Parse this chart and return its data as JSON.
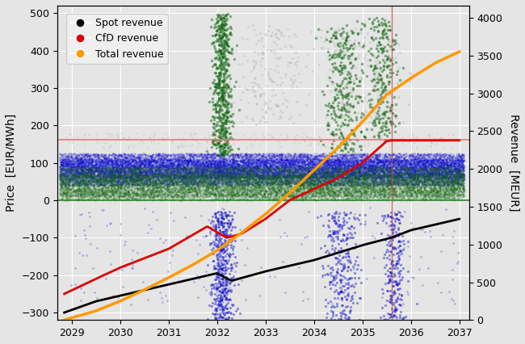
{
  "ylabel_left": "Price  [EUR/MWh]",
  "ylabel_right": "Revenue  [MEUR]",
  "xlim": [
    2028.7,
    2037.2
  ],
  "ylim_left": [
    -320,
    520
  ],
  "ylim_right": [
    0,
    4160
  ],
  "x_ticks": [
    2029,
    2030,
    2031,
    2032,
    2033,
    2034,
    2035,
    2036,
    2037
  ],
  "background_color": "#e5e5e5",
  "grid_color": "#ffffff",
  "hline_pink_y": 162,
  "hline_pink_color": "#e87878",
  "hline_green_y": 0,
  "hline_green_color": "#228822",
  "vline_x": 2035.6,
  "vline_color": "#cc4444",
  "blue_scatter_color": "#1111cc",
  "green_scatter_color": "#116611",
  "gray_scatter_color": "#aaaaaa",
  "spot_line_color": "#000000",
  "cfd_line_color": "#dd0000",
  "total_line_color": "#ff9900",
  "legend_labels": [
    "Spot revenue",
    "CfD revenue",
    "Total revenue"
  ],
  "legend_colors": [
    "#000000",
    "#dd0000",
    "#ff9900"
  ],
  "right_yticks": [
    0,
    500,
    1000,
    1500,
    2000,
    2500,
    3000,
    3500,
    4000
  ],
  "left_yticks": [
    -300,
    -200,
    -100,
    0,
    100,
    200,
    300,
    400,
    500
  ]
}
